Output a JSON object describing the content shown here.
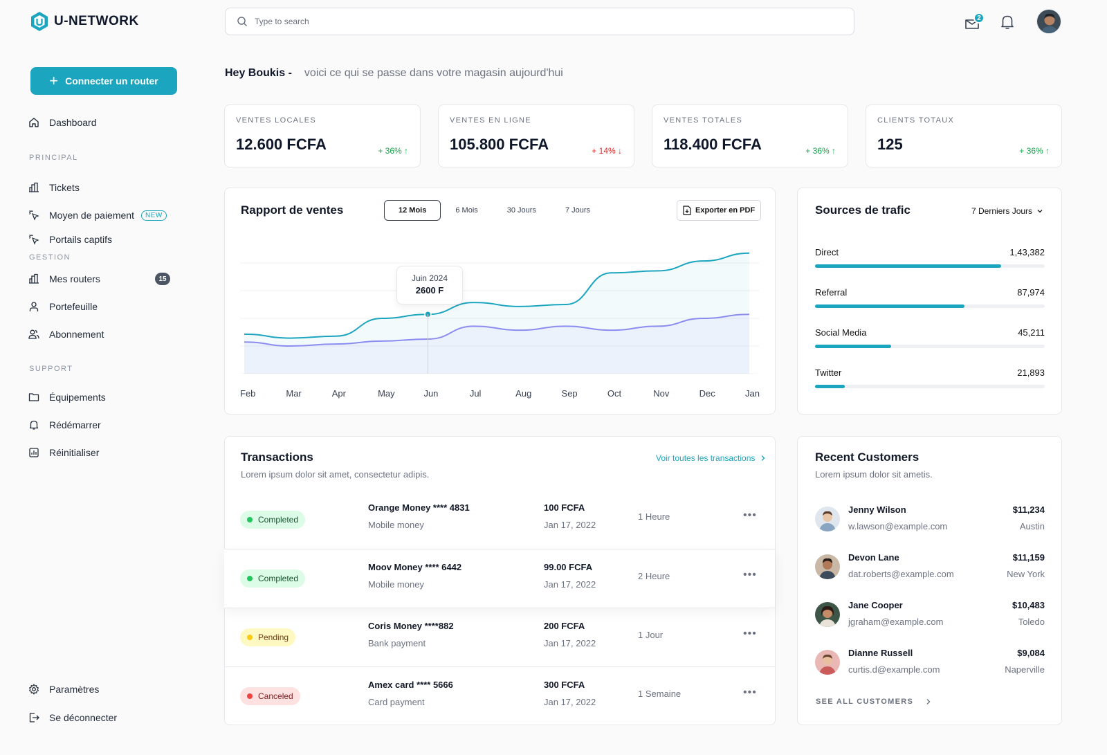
{
  "brand": {
    "name": "U-NETWORK",
    "color": "#1ba5bf"
  },
  "sidebar": {
    "connect_label": "Connecter un router",
    "dashboard": "Dashboard",
    "sections": {
      "principal": "PRINCIPAL",
      "gestion": "GESTION",
      "support": "SUPPORT"
    },
    "principal": [
      {
        "label": "Tickets",
        "icon": "bar-chart-icon"
      },
      {
        "label": "Moyen de paiement",
        "icon": "cursor-click-icon",
        "badge": "NEW"
      },
      {
        "label": "Portails captifs",
        "icon": "cursor-click-icon"
      }
    ],
    "gestion": [
      {
        "label": "Mes routers",
        "icon": "bar-chart-icon",
        "count": "15"
      },
      {
        "label": "Portefeuille",
        "icon": "user-icon"
      },
      {
        "label": "Abonnement",
        "icon": "users-icon"
      }
    ],
    "support": [
      {
        "label": "Équipements",
        "icon": "folder-icon"
      },
      {
        "label": "Rédémarrer",
        "icon": "bell-icon"
      },
      {
        "label": "Réinitialiser",
        "icon": "report-icon"
      }
    ],
    "bottom": [
      {
        "label": "Paramètres",
        "icon": "gear-icon"
      },
      {
        "label": "Se déconnecter",
        "icon": "logout-icon"
      }
    ]
  },
  "header": {
    "search_placeholder": "Type to search",
    "mail_badge": "2"
  },
  "greeting": {
    "name": "Hey Boukis -",
    "message": "voici ce qui se passe dans votre magasin aujourd'hui"
  },
  "stats": [
    {
      "label": "VENTES LOCALES",
      "value": "12.600 FCFA",
      "delta": "+ 36% ↑",
      "trend": "up"
    },
    {
      "label": "VENTES EN LIGNE",
      "value": "105.800 FCFA",
      "delta": "+ 14% ↓",
      "trend": "down"
    },
    {
      "label": "VENTES TOTALES",
      "value": "118.400 FCFA",
      "delta": "+ 36% ↑",
      "trend": "up"
    },
    {
      "label": "CLIENTS TOTAUX",
      "value": "125",
      "delta": "+ 36% ↑",
      "trend": "up"
    }
  ],
  "sales_report": {
    "title": "Rapport de ventes",
    "tabs": [
      "12 Mois",
      "6 Mois",
      "30 Jours",
      "7 Jours"
    ],
    "active_tab": "12 Mois",
    "export_label": "Exporter en PDF",
    "tooltip": {
      "month": "Juin 2024",
      "value": "2600 F"
    }
  },
  "chart_data": {
    "type": "area",
    "categories": [
      "Feb",
      "Mar",
      "Apr",
      "May",
      "Jun",
      "Jul",
      "Aug",
      "Sep",
      "Oct",
      "Nov",
      "Dec",
      "Jan"
    ],
    "grid": true,
    "series": [
      {
        "color": "#1ba5bf",
        "values": [
          2400,
          2360,
          2380,
          2560,
          2600,
          2720,
          2680,
          2700,
          3020,
          3040,
          3140,
          3220
        ]
      },
      {
        "color": "#8b8cf0",
        "values": [
          2320,
          2280,
          2300,
          2330,
          2350,
          2480,
          2440,
          2480,
          2440,
          2480,
          2560,
          2600
        ]
      }
    ]
  },
  "traffic": {
    "title": "Sources de trafic",
    "range": "7 Derniers Jours",
    "items": [
      {
        "label": "Direct",
        "value": "1,43,382",
        "pct": 0.81
      },
      {
        "label": "Referral",
        "value": "87,974",
        "pct": 0.65
      },
      {
        "label": "Social Media",
        "value": "45,211",
        "pct": 0.33
      },
      {
        "label": "Twitter",
        "value": "21,893",
        "pct": 0.13
      }
    ]
  },
  "transactions": {
    "title": "Transactions",
    "subtitle": "Lorem ipsum dolor sit amet, consectetur adipis.",
    "see_all": "Voir toutes les transactions",
    "rows": [
      {
        "status": "Completed",
        "name": "Orange Money **** 4831",
        "type": "Mobile money",
        "amount": "100 FCFA",
        "date": "Jan 17, 2022",
        "time": "1 Heure"
      },
      {
        "status": "Completed",
        "name": "Moov Money **** 6442",
        "type": "Mobile money",
        "amount": "99.00 FCFA",
        "date": "Jan 17, 2022",
        "time": "2 Heure"
      },
      {
        "status": "Pending",
        "name": "Coris Money ****882",
        "type": "Bank payment",
        "amount": "200 FCFA",
        "date": "Jan 17, 2022",
        "time": "1 Jour"
      },
      {
        "status": "Canceled",
        "name": "Amex card **** 5666",
        "type": "Card payment",
        "amount": "300 FCFA",
        "date": "Jan 17, 2022",
        "time": "1 Semaine"
      }
    ],
    "more": "•••"
  },
  "customers": {
    "title": "Recent Customers",
    "subtitle": "Lorem ipsum dolor sit ametis.",
    "see_all": "SEE ALL CUSTOMERS",
    "rows": [
      {
        "name": "Jenny Wilson",
        "email": "w.lawson@example.com",
        "amount": "$11,234",
        "city": "Austin"
      },
      {
        "name": "Devon Lane",
        "email": "dat.roberts@example.com",
        "amount": "$11,159",
        "city": "New York"
      },
      {
        "name": "Jane Cooper",
        "email": "jgraham@example.com",
        "amount": "$10,483",
        "city": "Toledo"
      },
      {
        "name": "Dianne Russell",
        "email": "curtis.d@example.com",
        "amount": "$9,084",
        "city": "Naperville"
      }
    ]
  }
}
